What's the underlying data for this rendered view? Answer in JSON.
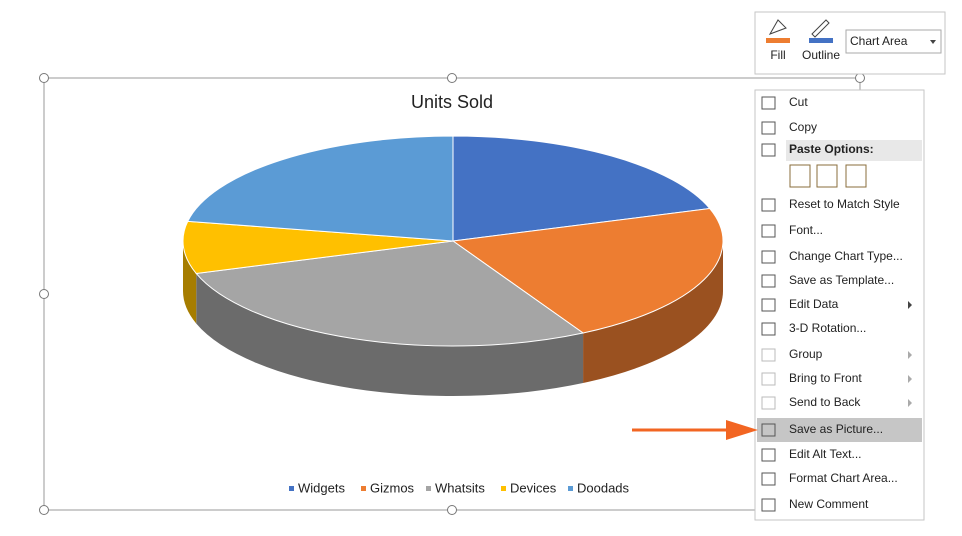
{
  "chart_data": {
    "type": "pie3d",
    "title": "Units Sold",
    "categories": [
      "Widgets",
      "Gizmos",
      "Whatsits",
      "Devices",
      "Doodads"
    ],
    "values": [
      20,
      22,
      28,
      8,
      22
    ],
    "colors": [
      "#4472c4",
      "#ed7d31",
      "#a5a5a5",
      "#ffc000",
      "#5b9bd5"
    ]
  },
  "toolbar": {
    "fill": "Fill",
    "outline": "Outline",
    "dropdown": "Chart Area"
  },
  "context_menu": {
    "items": [
      {
        "label": "Cut"
      },
      {
        "label": "Copy"
      },
      {
        "label": "Paste Options:",
        "header": true
      },
      {
        "label": "Reset to Match Style"
      },
      {
        "label": "Font..."
      },
      {
        "label": "Change Chart Type..."
      },
      {
        "label": "Save as Template..."
      },
      {
        "label": "Edit Data",
        "submenu": true
      },
      {
        "label": "3-D Rotation..."
      },
      {
        "label": "Group",
        "submenu": true,
        "disabled": true
      },
      {
        "label": "Bring to Front",
        "submenu": true,
        "disabled": true
      },
      {
        "label": "Send to Back",
        "submenu": true,
        "disabled": true
      },
      {
        "label": "Save as Picture...",
        "highlight": true
      },
      {
        "label": "Edit Alt Text..."
      },
      {
        "label": "Format Chart Area..."
      },
      {
        "label": "New Comment"
      }
    ]
  }
}
